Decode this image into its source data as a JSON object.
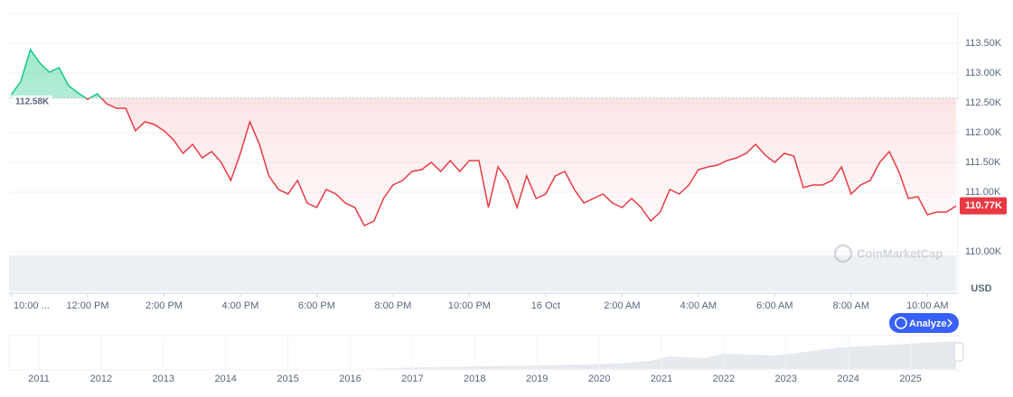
{
  "chart_data": {
    "type": "line",
    "values": [
      112636,
      112864,
      113394,
      113167,
      113015,
      113091,
      112788,
      112667,
      112561,
      112652,
      112485,
      112409,
      112409,
      112030,
      112182,
      112136,
      112030,
      111879,
      111652,
      111803,
      111576,
      111682,
      111500,
      111197,
      111652,
      112182,
      111803,
      111273,
      111045,
      110970,
      111197,
      110818,
      110742,
      111045,
      110970,
      110818,
      110742,
      110439,
      110515,
      110894,
      111121,
      111197,
      111348,
      111379,
      111500,
      111348,
      111530,
      111348,
      111530,
      111530,
      110742,
      111424,
      111197,
      110742,
      111273,
      110894,
      110970,
      111273,
      111348,
      111045,
      110818,
      110894,
      110970,
      110818,
      110742,
      110894,
      110742,
      110515,
      110667,
      111045,
      110970,
      111121,
      111379,
      111424,
      111455,
      111530,
      111576,
      111652,
      111803,
      111621,
      111500,
      111652,
      111606,
      111076,
      111121,
      111121,
      111197,
      111424,
      110970,
      111121,
      111197,
      111500,
      111682,
      111348,
      110894,
      110924,
      110621,
      110667,
      110667,
      110770
    ],
    "value_labels": {
      "99": "110.77K"
    },
    "baseline": {
      "value": 112580,
      "label": "112.58K"
    },
    "up_color": "#16c784",
    "down_color": "#ea3943",
    "ylim": [
      109750,
      114000
    ],
    "yticks": [
      {
        "value": 113500,
        "label": "113.50K"
      },
      {
        "value": 113000,
        "label": "113.00K"
      },
      {
        "value": 112500,
        "label": "112.50K"
      },
      {
        "value": 112000,
        "label": "112.00K"
      },
      {
        "value": 111500,
        "label": "111.50K"
      },
      {
        "value": 111000,
        "label": "111.00K"
      },
      {
        "value": 110000,
        "label": "110.00K"
      }
    ],
    "xlim": [
      0,
      99
    ],
    "xticks": [
      {
        "value": 0,
        "label": "10:00 ..."
      },
      {
        "value": 8,
        "label": "12:00 PM"
      },
      {
        "value": 16,
        "label": "2:00 PM"
      },
      {
        "value": 24,
        "label": "4:00 PM"
      },
      {
        "value": 32,
        "label": "6:00 PM"
      },
      {
        "value": 40,
        "label": "8:00 PM"
      },
      {
        "value": 48,
        "label": "10:00 PM"
      },
      {
        "value": 56,
        "label": "16 Oct"
      },
      {
        "value": 64,
        "label": "2:00 AM"
      },
      {
        "value": 72,
        "label": "4:00 AM"
      },
      {
        "value": 80,
        "label": "6:00 AM"
      },
      {
        "value": 88,
        "label": "8:00 AM"
      },
      {
        "value": 96,
        "label": "10:00 AM"
      }
    ],
    "grid": true,
    "currency_label": "USD",
    "watermark": "CoinMarketCap",
    "analyze_button": "Analyze",
    "navigator_years": [
      "2011",
      "2012",
      "2013",
      "2014",
      "2015",
      "2016",
      "2017",
      "2018",
      "2019",
      "2020",
      "2021",
      "2022",
      "2023",
      "2024",
      "2025"
    ]
  }
}
